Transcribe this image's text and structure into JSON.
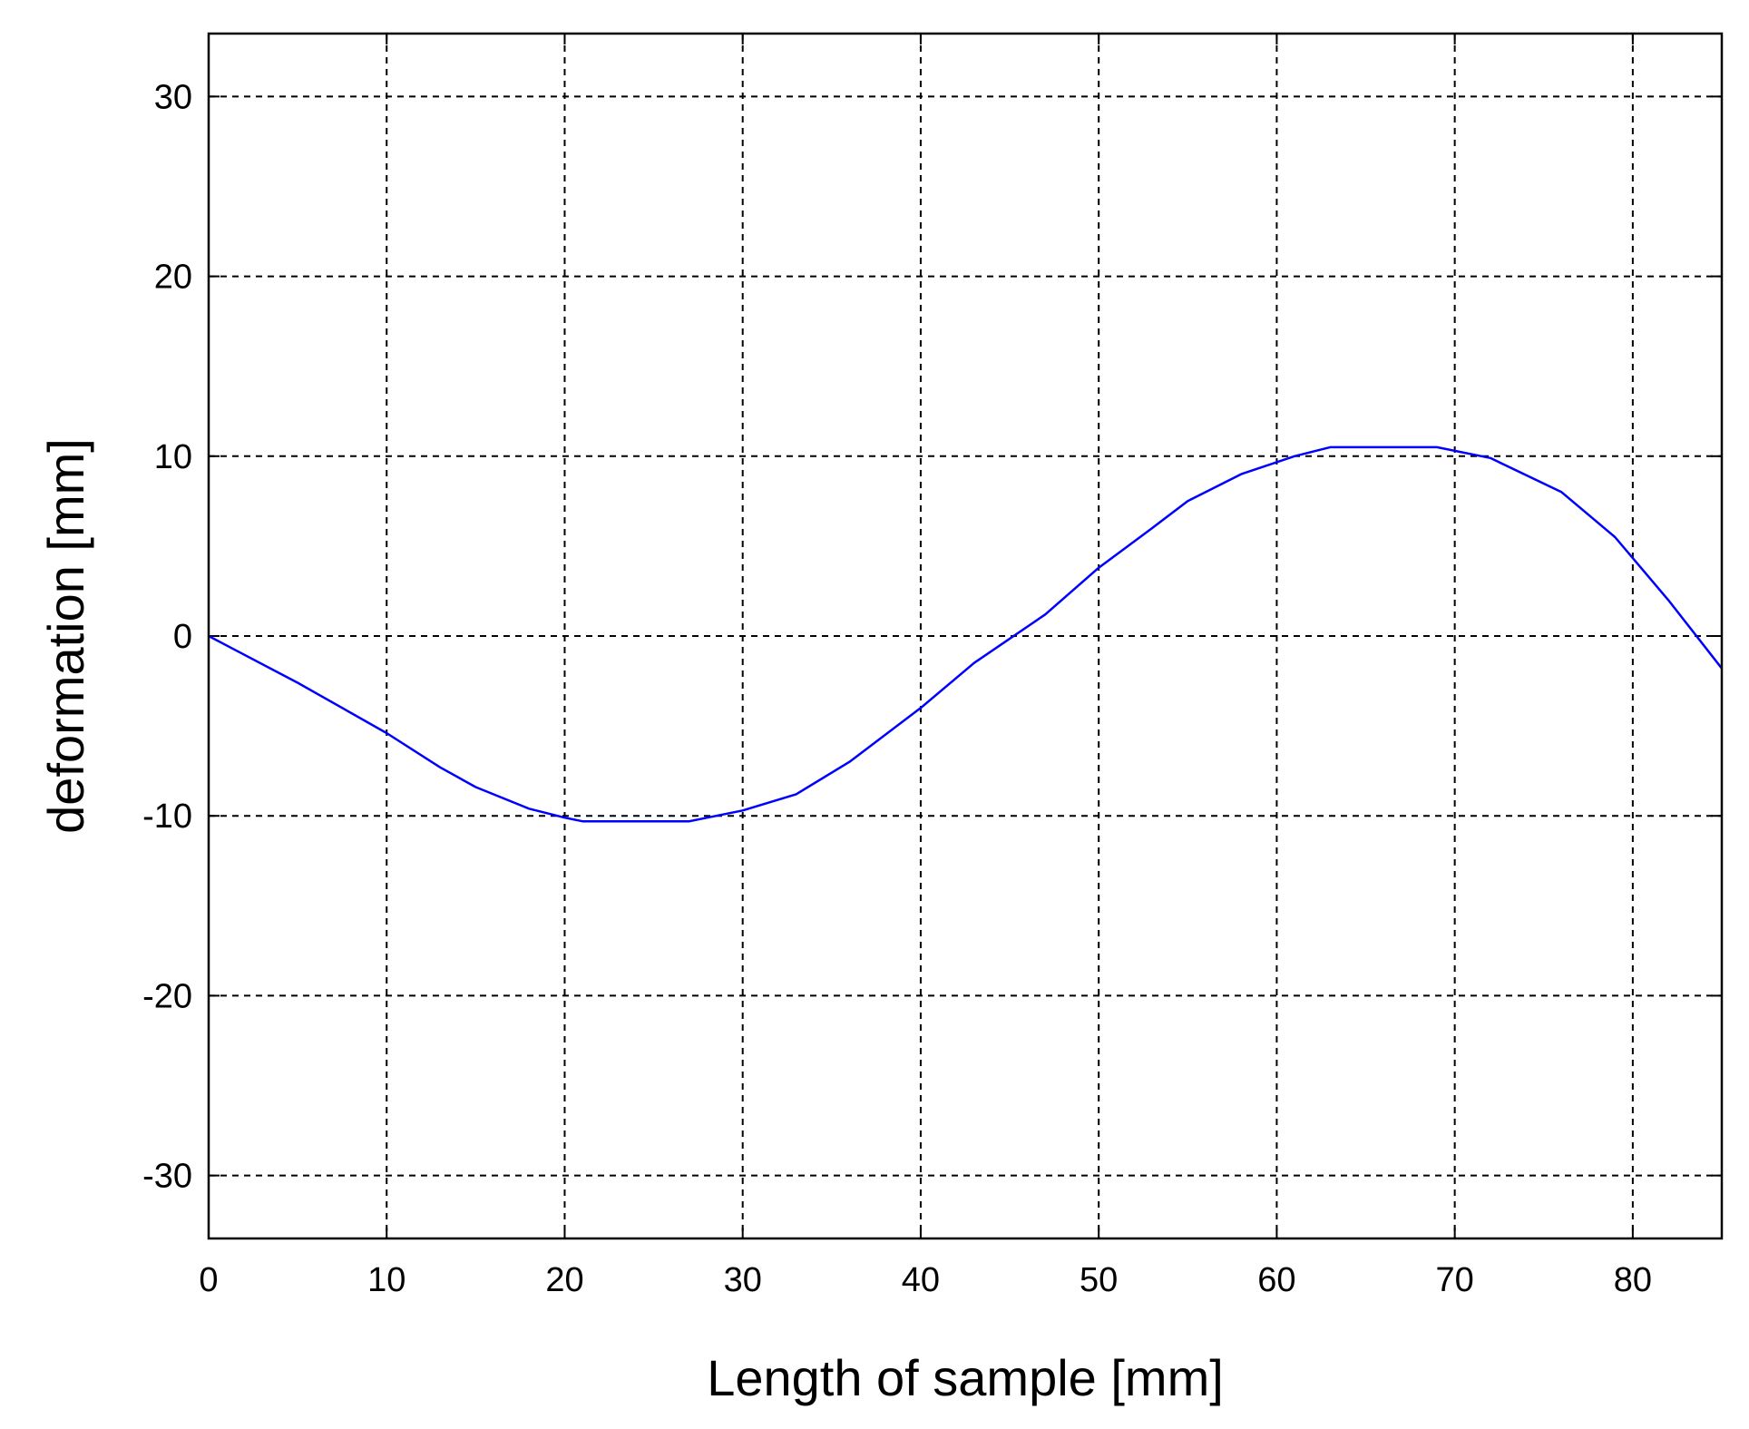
{
  "chart_data": {
    "type": "line",
    "title": "",
    "xlabel": "Length of sample [mm]",
    "ylabel": "deformation [mm]",
    "xlim": [
      0,
      85
    ],
    "ylim": [
      -33.5,
      33.5
    ],
    "xticks": [
      0,
      10,
      20,
      30,
      40,
      50,
      60,
      70,
      80
    ],
    "yticks": [
      -30,
      -20,
      -10,
      0,
      10,
      20,
      30
    ],
    "xtick_labels": [
      "0",
      "10",
      "20",
      "30",
      "40",
      "50",
      "60",
      "70",
      "80"
    ],
    "ytick_labels": [
      "-30",
      "-20",
      "-10",
      "0",
      "10",
      "20",
      "30"
    ],
    "grid": true,
    "grid_style": "dashed",
    "legend": false,
    "series": [
      {
        "color": "#0000ff",
        "x": [
          0,
          5,
          10,
          13,
          15,
          18,
          20,
          21,
          24,
          27,
          30,
          33,
          36,
          40,
          43,
          47,
          50,
          53,
          55,
          58,
          61,
          63,
          66,
          69,
          72,
          76,
          79,
          82,
          85
        ],
        "y": [
          0,
          -2.6,
          -5.4,
          -7.3,
          -8.4,
          -9.6,
          -10.1,
          -10.3,
          -10.3,
          -10.3,
          -9.7,
          -8.8,
          -7,
          -4,
          -1.5,
          1.2,
          3.8,
          6,
          7.5,
          9,
          10,
          10.5,
          10.5,
          10.5,
          9.9,
          8,
          5.5,
          2,
          -1.8
        ]
      }
    ]
  }
}
